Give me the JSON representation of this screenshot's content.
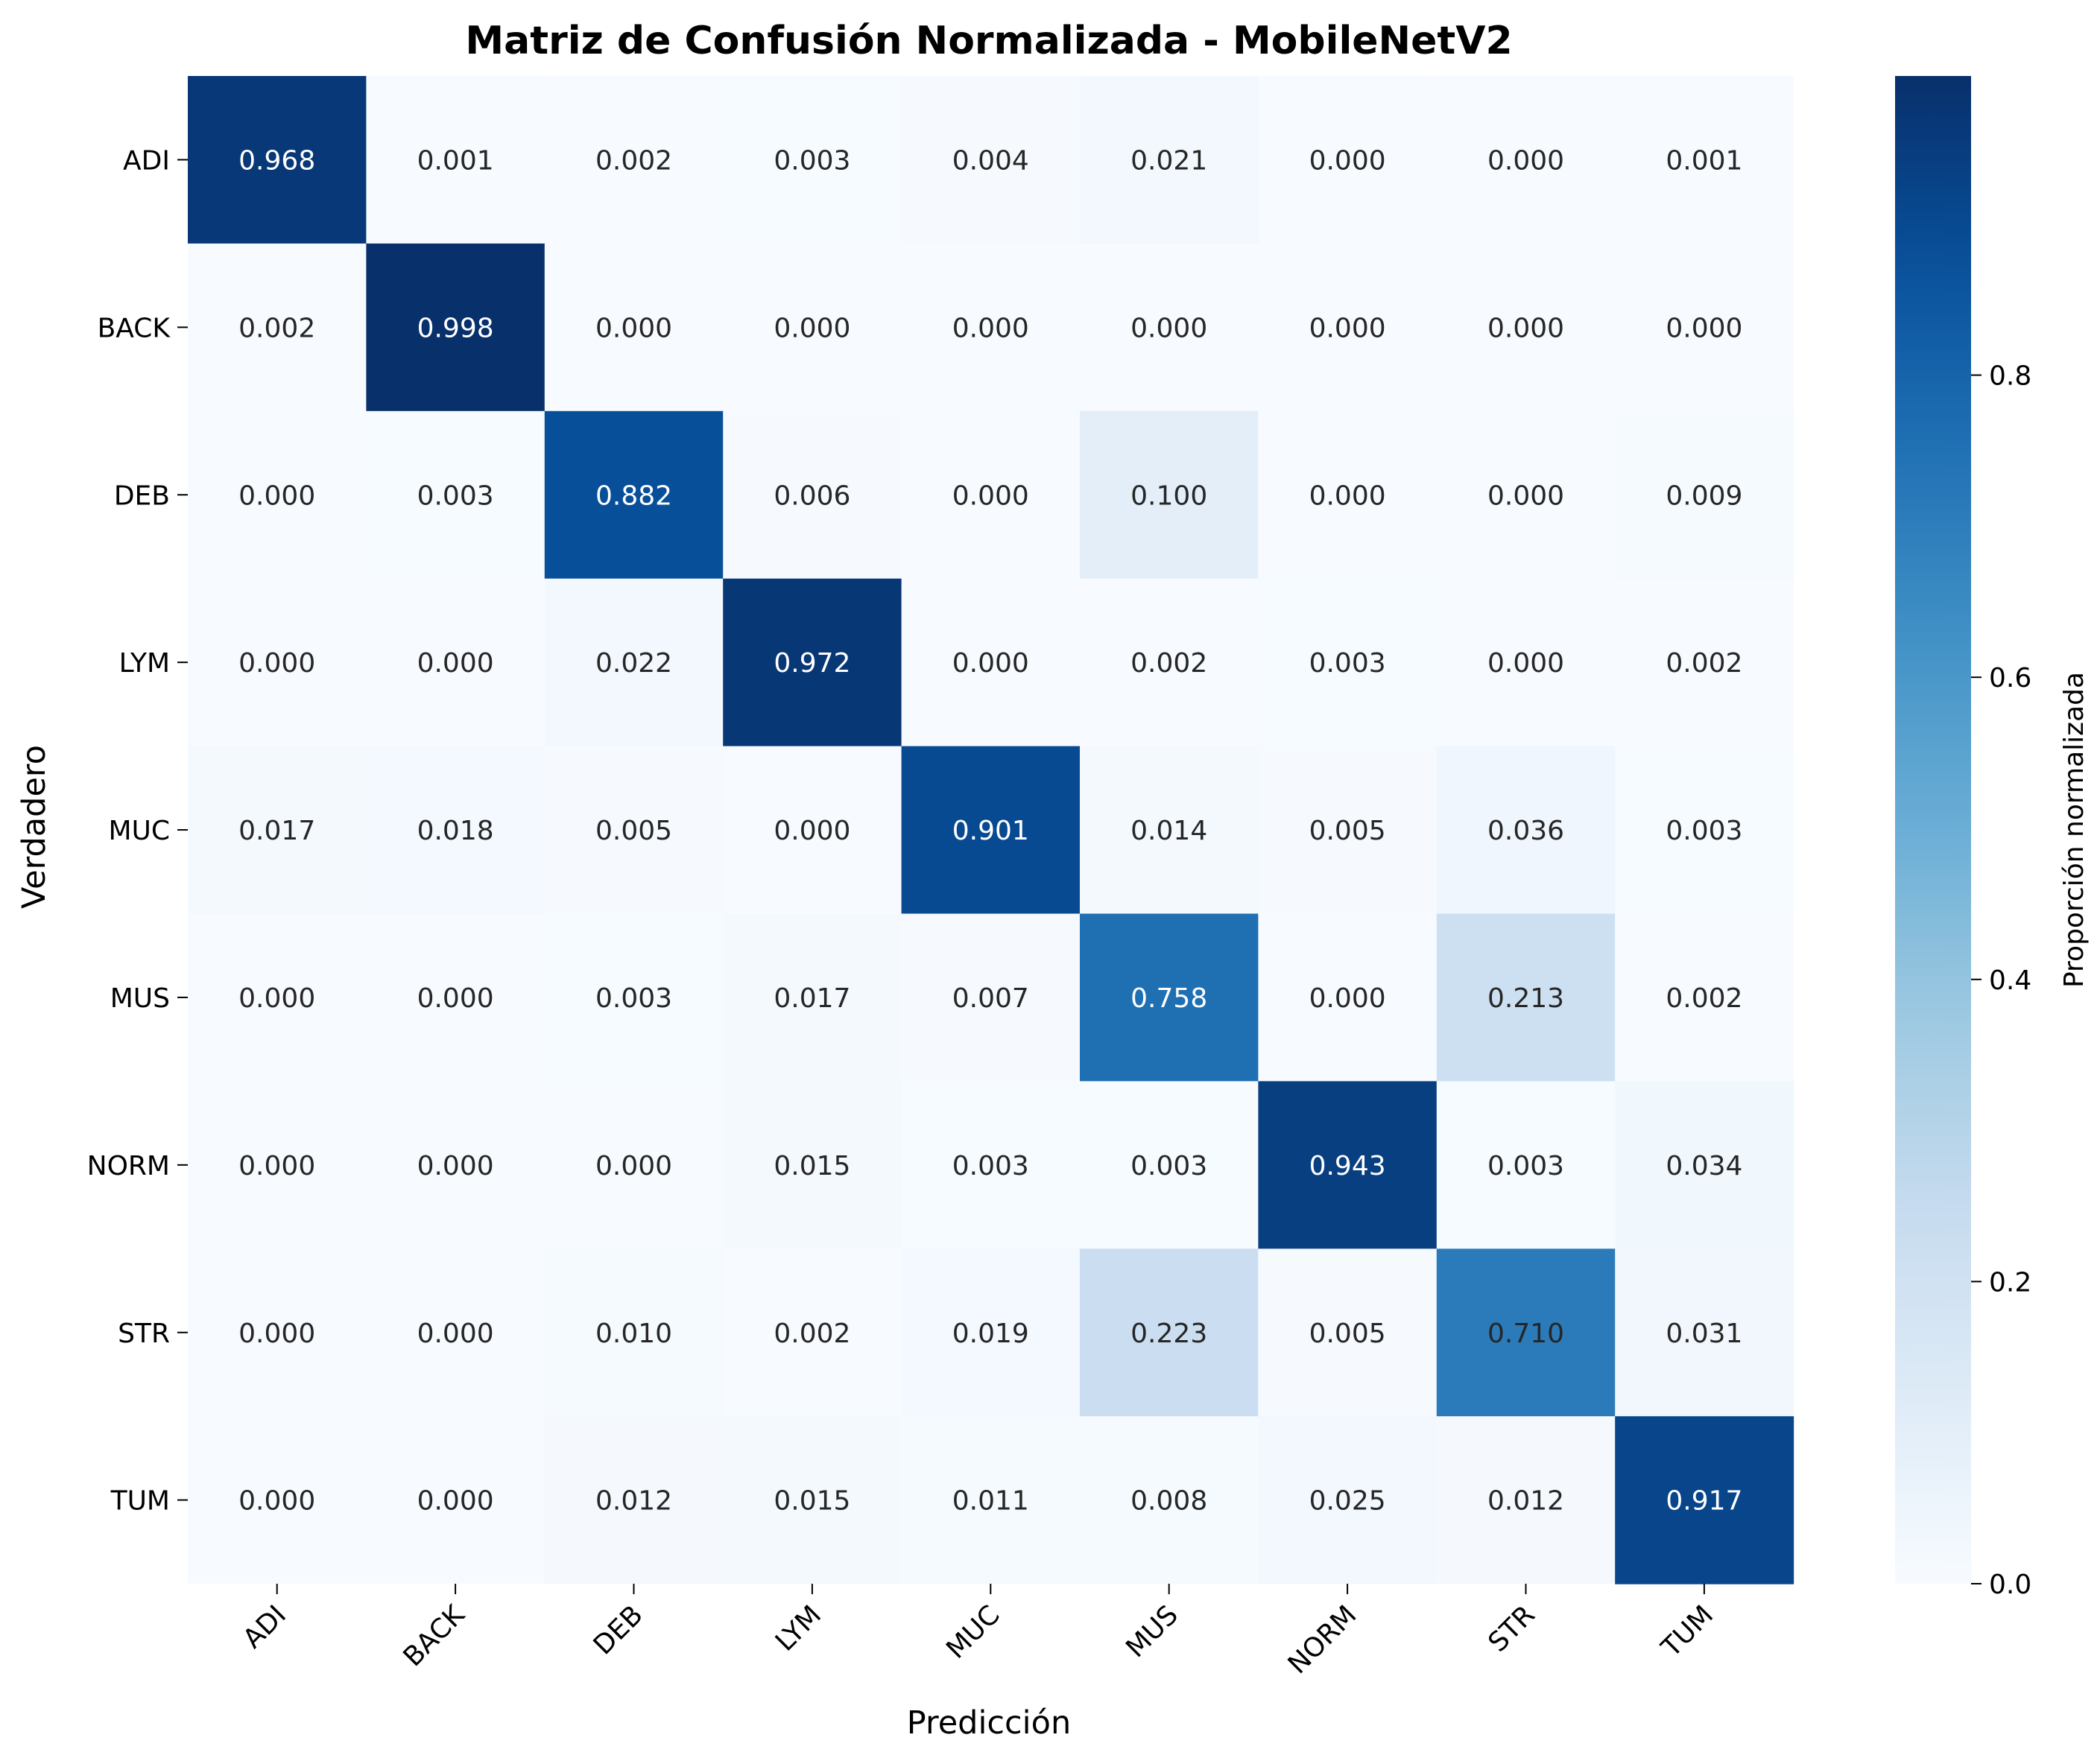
{
  "chart_data": {
    "type": "heatmap",
    "title": "Matriz de Confusión Normalizada - MobileNetV2",
    "xlabel": "Predicción",
    "ylabel": "Verdadero",
    "x_categories": [
      "ADI",
      "BACK",
      "DEB",
      "LYM",
      "MUC",
      "MUS",
      "NORM",
      "STR",
      "TUM"
    ],
    "y_categories": [
      "ADI",
      "BACK",
      "DEB",
      "LYM",
      "MUC",
      "MUS",
      "NORM",
      "STR",
      "TUM"
    ],
    "values": [
      [
        0.968,
        0.001,
        0.002,
        0.003,
        0.004,
        0.021,
        0.0,
        0.0,
        0.001
      ],
      [
        0.002,
        0.998,
        0.0,
        0.0,
        0.0,
        0.0,
        0.0,
        0.0,
        0.0
      ],
      [
        0.0,
        0.003,
        0.882,
        0.006,
        0.0,
        0.1,
        0.0,
        0.0,
        0.009
      ],
      [
        0.0,
        0.0,
        0.022,
        0.972,
        0.0,
        0.002,
        0.003,
        0.0,
        0.002
      ],
      [
        0.017,
        0.018,
        0.005,
        0.0,
        0.901,
        0.014,
        0.005,
        0.036,
        0.003
      ],
      [
        0.0,
        0.0,
        0.003,
        0.017,
        0.007,
        0.758,
        0.0,
        0.213,
        0.002
      ],
      [
        0.0,
        0.0,
        0.0,
        0.015,
        0.003,
        0.003,
        0.943,
        0.003,
        0.034
      ],
      [
        0.0,
        0.0,
        0.01,
        0.002,
        0.019,
        0.223,
        0.005,
        0.71,
        0.031
      ],
      [
        0.0,
        0.0,
        0.012,
        0.015,
        0.011,
        0.008,
        0.025,
        0.012,
        0.917
      ]
    ],
    "value_format": "0.000",
    "colormap": "Blues",
    "color_range": [
      0.0,
      0.998
    ],
    "colorbar": {
      "label": "Proporción normalizada",
      "ticks": [
        0.0,
        0.2,
        0.4,
        0.6,
        0.8
      ],
      "tick_labels": [
        "0.0",
        "0.2",
        "0.4",
        "0.6",
        "0.8"
      ]
    },
    "annotation_colors": {
      "dark": "#262626",
      "light": "#ffffff"
    }
  }
}
